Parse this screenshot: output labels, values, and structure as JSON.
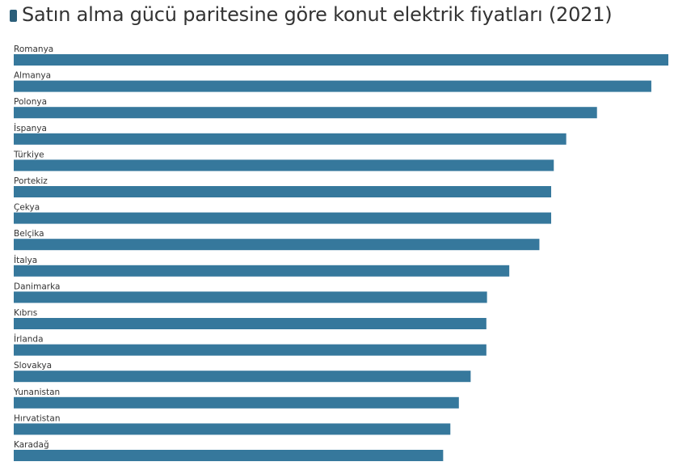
{
  "chart_data": {
    "type": "bar",
    "orientation": "horizontal",
    "title": "Satın alma gücü paritesine göre konut elektrik fiyatları (2021)",
    "categories": [
      "Romanya",
      "Almanya",
      "Polonya",
      "İspanya",
      "Türkiye",
      "Portekiz",
      "Çekya",
      "Belçika",
      "İtalya",
      "Danimarka",
      "Kıbrıs",
      "İrlanda",
      "Slovakya",
      "Yunanistan",
      "Hırvatistan",
      "Karadağ"
    ],
    "values": [
      100,
      97.4,
      89.1,
      84.4,
      82.5,
      82.1,
      82.1,
      80.3,
      75.7,
      72.3,
      72.2,
      72.2,
      69.8,
      68.0,
      66.7,
      65.6
    ],
    "xlim": [
      0,
      100
    ],
    "grid": false,
    "legend": "top-left",
    "bar_color": "#36789c",
    "legend_swatch_color": "#2c5f7a"
  }
}
